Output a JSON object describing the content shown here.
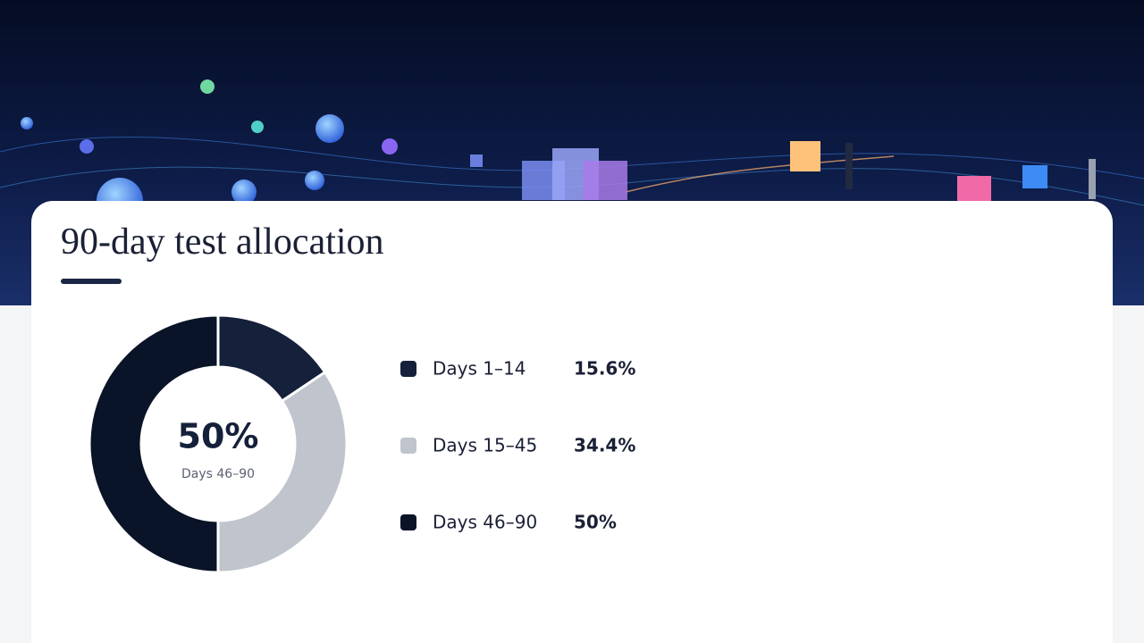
{
  "chart_data": {
    "type": "donut",
    "title": "90-day test allocation",
    "categories": [
      "Days 1–14",
      "Days 15–45",
      "Days 46–90"
    ],
    "values": [
      15.6,
      34.4,
      50
    ],
    "value_labels": [
      "15.6%",
      "34.4%",
      "50%"
    ],
    "colors": [
      "#15203b",
      "#c0c4cc",
      "#0a1428"
    ]
  }
}
